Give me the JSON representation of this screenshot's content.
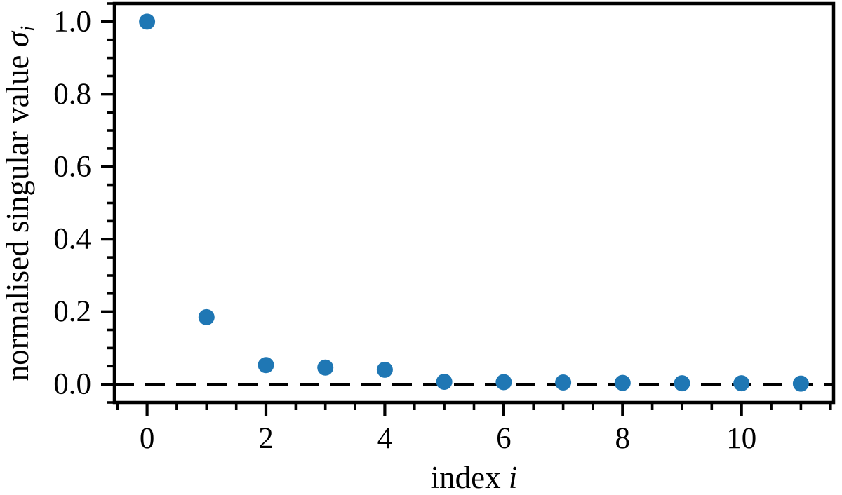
{
  "figure": {
    "background_color": "#ffffff"
  },
  "chart_data": {
    "type": "scatter",
    "title": "",
    "xlabel": "index i",
    "ylabel": "normalised singular value σᵢ",
    "xlabel_parts": {
      "text": "index ",
      "symbol": "i"
    },
    "ylabel_parts": {
      "text": "normalised singular value ",
      "symbol": "σ",
      "subscript": "i"
    },
    "x": [
      0,
      1,
      2,
      3,
      4,
      5,
      6,
      7,
      8,
      9,
      10,
      11
    ],
    "y": [
      1.0,
      0.185,
      0.053,
      0.046,
      0.04,
      0.007,
      0.006,
      0.005,
      0.004,
      0.003,
      0.003,
      0.002
    ],
    "series_name": "normalised singular values",
    "marker": {
      "shape": "circle",
      "color": "#1f77b4",
      "radius_px": 11.5
    },
    "xlim": [
      -0.55,
      11.55
    ],
    "ylim": [
      -0.05,
      1.05
    ],
    "x_major_ticks": [
      0,
      2,
      4,
      6,
      8,
      10
    ],
    "x_major_tick_labels": [
      "0",
      "2",
      "4",
      "6",
      "8",
      "10"
    ],
    "x_minor_tick_step": 0.5,
    "y_major_ticks": [
      0,
      0.2,
      0.4,
      0.6,
      0.8,
      1.0
    ],
    "y_major_tick_labels": [
      "0.0",
      "0.2",
      "0.4",
      "0.6",
      "0.8",
      "1.0"
    ],
    "y_minor_tick_step": 0.05,
    "reference_line": {
      "y": 0,
      "style": "dashed",
      "color": "#000000"
    },
    "axis_color": "#000000",
    "grid": false,
    "legend": null
  }
}
